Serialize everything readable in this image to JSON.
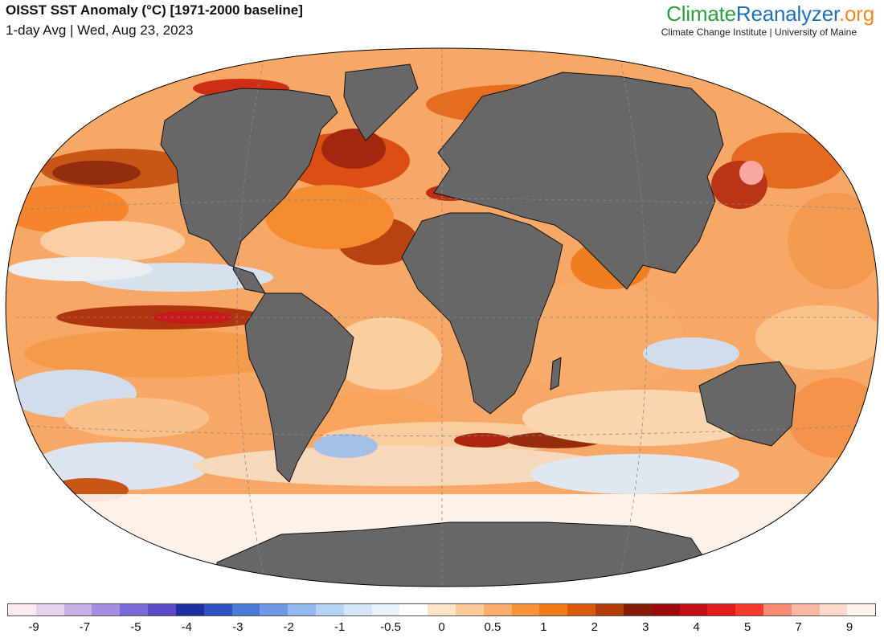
{
  "header": {
    "title": "OISST SST Anomaly (°C) [1971-2000 baseline]",
    "subtitle": "1-day Avg | Wed, Aug 23, 2023"
  },
  "brand": {
    "part1": "Climate",
    "part2": "Reanalyzer",
    "part3": ".org",
    "credit": "Climate Change Institute | University of Maine",
    "colors": {
      "climate": "#2a9d3f",
      "reanalyzer": "#1f6fb4",
      "org": "#f08a1c"
    }
  },
  "map": {
    "projection": "Winkel Tripel",
    "land_color": "#666666",
    "ocean_base_color": "#f4a05a",
    "graticule": "dashed"
  },
  "legend": {
    "colors": [
      "#ffe9f1",
      "#e6d2ee",
      "#c8b0e6",
      "#a58ee0",
      "#7a6ad6",
      "#5a4cc4",
      "#1e2f9e",
      "#2a52c0",
      "#4a7ad6",
      "#6d9ae6",
      "#93b9f0",
      "#b6d3f6",
      "#d3e6fa",
      "#e9f3fd",
      "#ffffff",
      "#fde5c8",
      "#fccb98",
      "#fbae6a",
      "#f99339",
      "#f07a1a",
      "#d95a0c",
      "#b23c07",
      "#841d06",
      "#9c0a0c",
      "#c20f14",
      "#e01c1c",
      "#f53a2e",
      "#f98a74",
      "#fbb7a4",
      "#fcd9cc",
      "#fff1ec"
    ],
    "tick_labels": [
      "-9",
      "-7",
      "-5",
      "-4",
      "-3",
      "-2",
      "-1",
      "-0.5",
      "0",
      "0.5",
      "1",
      "2",
      "3",
      "4",
      "5",
      "7",
      "9"
    ]
  }
}
